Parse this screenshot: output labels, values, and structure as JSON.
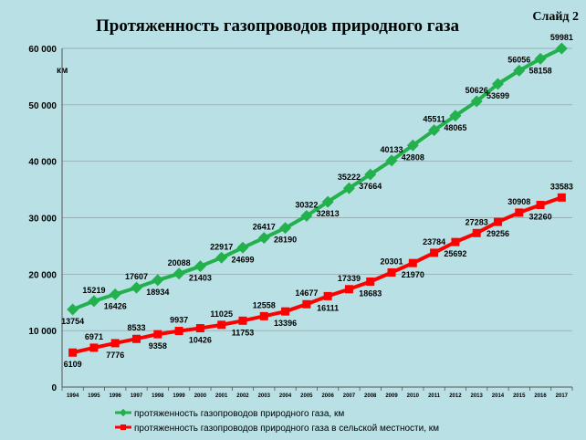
{
  "slide_label": "Слайд 2",
  "chart_data": {
    "type": "line",
    "title": "Протяженность газопроводов природного газа",
    "ylabel": "км",
    "xlabel": "",
    "ylim": [
      0,
      60000
    ],
    "yticks": [
      "0",
      "10 000",
      "20 000",
      "30 000",
      "40 000",
      "50 000",
      "60 000"
    ],
    "ytick_values": [
      0,
      10000,
      20000,
      30000,
      40000,
      50000,
      60000
    ],
    "grid": true,
    "legend_position": "bottom",
    "categories": [
      "1994",
      "1995",
      "1996",
      "1997",
      "1998",
      "1999",
      "2000",
      "2001",
      "2002",
      "2003",
      "2004",
      "2005",
      "2006",
      "2007",
      "2008",
      "2009",
      "2010",
      "2011",
      "2012",
      "2013",
      "2014",
      "2015",
      "2016",
      "2017"
    ],
    "series": [
      {
        "name": "протяженность газопроводов природного газа, км",
        "color": "#22b14c",
        "marker": "diamond",
        "values": [
          13754,
          15219,
          16426,
          17607,
          18934,
          20088,
          21403,
          22917,
          24699,
          26417,
          28190,
          30322,
          32813,
          35222,
          37664,
          40133,
          42808,
          45511,
          48065,
          50626,
          53699,
          56056,
          58158,
          59981
        ],
        "labels": [
          "13754",
          "15219",
          "16426",
          "17607",
          "18934",
          "20088",
          "21403",
          "22917",
          "24699",
          "26417",
          "28190",
          "30322",
          "32813",
          "35222",
          "37664",
          "40133",
          "42808",
          "45511",
          "48065",
          "50626",
          "53699",
          "56056",
          "58158",
          "59981"
        ]
      },
      {
        "name": "протяженность газопроводов природного газа в сельской местности, км",
        "color": "#ff0000",
        "marker": "square",
        "values": [
          6109,
          6971,
          7776,
          8533,
          9358,
          9937,
          10426,
          11025,
          11753,
          12558,
          13396,
          14677,
          16111,
          17339,
          18683,
          20301,
          21970,
          23784,
          25692,
          27283,
          29256,
          30908,
          32260,
          33583
        ],
        "labels": [
          "6109",
          "6971",
          "7776",
          "8533",
          "9358",
          "9937",
          "10426",
          "11025",
          "11753",
          "12558",
          "13396",
          "14677",
          "16111",
          "17339",
          "18683",
          "20301",
          "21970",
          "23784",
          "25692",
          "27283",
          "29256",
          "30908",
          "32260",
          "33583"
        ]
      }
    ]
  }
}
